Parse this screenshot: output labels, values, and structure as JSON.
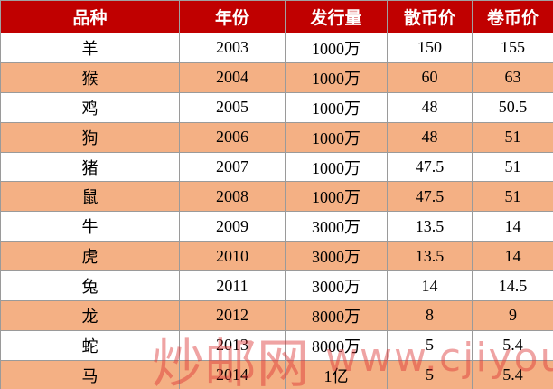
{
  "table": {
    "header": [
      "品种",
      "年份",
      "发行量",
      "散币价",
      "卷币价"
    ],
    "rows": [
      [
        "羊",
        "2003",
        "1000万",
        "150",
        "155"
      ],
      [
        "猴",
        "2004",
        "1000万",
        "60",
        "63"
      ],
      [
        "鸡",
        "2005",
        "1000万",
        "48",
        "50.5"
      ],
      [
        "狗",
        "2006",
        "1000万",
        "48",
        "51"
      ],
      [
        "猪",
        "2007",
        "1000万",
        "47.5",
        "51"
      ],
      [
        "鼠",
        "2008",
        "1000万",
        "47.5",
        "51"
      ],
      [
        "牛",
        "2009",
        "3000万",
        "13.5",
        "14"
      ],
      [
        "虎",
        "2010",
        "3000万",
        "13.5",
        "14"
      ],
      [
        "兔",
        "2011",
        "3000万",
        "14",
        "14.5"
      ],
      [
        "龙",
        "2012",
        "8000万",
        "8",
        "9"
      ],
      [
        "蛇",
        "2013",
        "8000万",
        "5",
        "5.4"
      ],
      [
        "马",
        "2014",
        "1亿",
        "5",
        "5.4"
      ]
    ]
  },
  "watermark": {
    "site": "炒邮网",
    "url": "www.cjiyou.net"
  }
}
